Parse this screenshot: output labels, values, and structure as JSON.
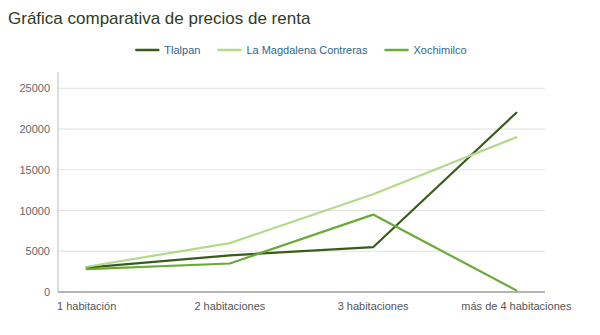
{
  "chart_data": {
    "type": "line",
    "title": "Gráfica comparativa de precios de renta",
    "categories": [
      "1 habitación",
      "2 habitaciones",
      "3 habitaciones",
      "más de 4 habitaciones"
    ],
    "series": [
      {
        "name": "Tlalpan",
        "color": "#3a5c1a",
        "values": [
          3000,
          4500,
          5500,
          22000
        ]
      },
      {
        "name": "La Magdalena Contreras",
        "color": "#b5d98a",
        "values": [
          3100,
          6000,
          12000,
          19000
        ]
      },
      {
        "name": "Xochimilco",
        "color": "#6aaa38",
        "values": [
          2800,
          3500,
          9500,
          200
        ]
      }
    ],
    "ylim": [
      0,
      27000
    ],
    "yticks": [
      0,
      5000,
      10000,
      15000,
      20000,
      25000
    ],
    "grid": true,
    "legend": "top"
  }
}
